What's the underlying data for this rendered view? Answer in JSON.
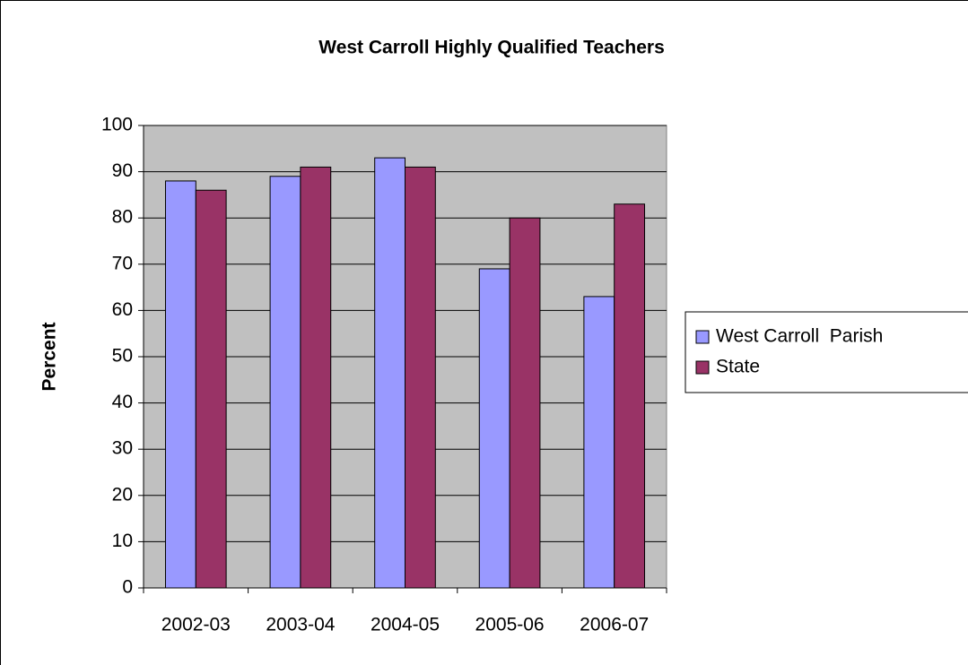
{
  "chart_data": {
    "type": "bar",
    "title": "West Carroll Highly Qualified Teachers",
    "y_label": "Percent",
    "categories": [
      "2002-03",
      "2003-04",
      "2004-05",
      "2005-06",
      "2006-07"
    ],
    "series": [
      {
        "name": "West Carroll  Parish",
        "color": "#9999ff",
        "values": [
          88,
          89,
          93,
          69,
          63
        ]
      },
      {
        "name": "State",
        "color": "#993366",
        "values": [
          86,
          91,
          91,
          80,
          83
        ]
      }
    ],
    "ylim": [
      0,
      100
    ],
    "yticks": [
      0,
      10,
      20,
      30,
      40,
      50,
      60,
      70,
      80,
      90,
      100
    ],
    "grid": true,
    "legend": "right"
  }
}
